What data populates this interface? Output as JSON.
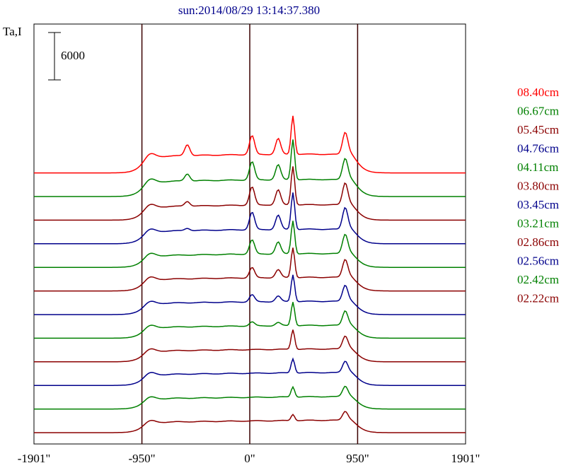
{
  "chart_data": {
    "type": "line",
    "title": "sun:2014/08/29 13:14:37.380",
    "ylabel": "Ta,I",
    "scale_bar_label": "6000",
    "xlim": [
      -1901,
      1901
    ],
    "x_ticks": [
      "-1901\"",
      "-950\"",
      "0\"",
      "950\"",
      "1901\""
    ],
    "x_tick_values": [
      -1901,
      -950,
      0,
      950,
      1901
    ],
    "vertical_markers": [
      -950,
      0,
      950
    ],
    "grid": false,
    "legend_position": "right",
    "series": [
      {
        "name": "08.40cm",
        "color": "#ff0000",
        "baseline": 760,
        "disk": 2200,
        "limb_peak": 1300,
        "center_dip": 120,
        "peaks": [
          {
            "x": -550,
            "h": 1400
          },
          {
            "x": 20,
            "h": 2400
          },
          {
            "x": 250,
            "h": 2000
          },
          {
            "x": 380,
            "h": 4900
          },
          {
            "x": 840,
            "h": 2600
          }
        ]
      },
      {
        "name": "06.67cm",
        "color": "#008000",
        "baseline": 1250,
        "disk": 2000,
        "limb_peak": 1200,
        "center_dip": 100,
        "peaks": [
          {
            "x": -550,
            "h": 900
          },
          {
            "x": 20,
            "h": 2300
          },
          {
            "x": 250,
            "h": 1900
          },
          {
            "x": 380,
            "h": 5100
          },
          {
            "x": 840,
            "h": 2500
          }
        ]
      },
      {
        "name": "05.45cm",
        "color": "#8b0000",
        "baseline": 1450,
        "disk": 1800,
        "limb_peak": 1100,
        "center_dip": 100,
        "peaks": [
          {
            "x": -550,
            "h": 600
          },
          {
            "x": 20,
            "h": 2300
          },
          {
            "x": 250,
            "h": 1900
          },
          {
            "x": 380,
            "h": 4900
          },
          {
            "x": 840,
            "h": 2600
          }
        ]
      },
      {
        "name": "04.76cm",
        "color": "#00008b",
        "baseline": 1600,
        "disk": 1700,
        "limb_peak": 1000,
        "center_dip": 80,
        "peaks": [
          {
            "x": -550,
            "h": 300
          },
          {
            "x": 20,
            "h": 2200
          },
          {
            "x": 250,
            "h": 1800
          },
          {
            "x": 380,
            "h": 4700
          },
          {
            "x": 840,
            "h": 2600
          }
        ]
      },
      {
        "name": "04.11cm",
        "color": "#008000",
        "baseline": 1700,
        "disk": 1600,
        "limb_peak": 1000,
        "center_dip": 80,
        "peaks": [
          {
            "x": 20,
            "h": 1800
          },
          {
            "x": 250,
            "h": 1500
          },
          {
            "x": 380,
            "h": 4200
          },
          {
            "x": 840,
            "h": 2300
          }
        ]
      },
      {
        "name": "03.80cm",
        "color": "#8b0000",
        "baseline": 1800,
        "disk": 1600,
        "limb_peak": 1000,
        "center_dip": 60,
        "peaks": [
          {
            "x": 20,
            "h": 1300
          },
          {
            "x": 250,
            "h": 1000
          },
          {
            "x": 380,
            "h": 3800
          },
          {
            "x": 840,
            "h": 2100
          }
        ]
      },
      {
        "name": "03.45cm",
        "color": "#00008b",
        "baseline": 1850,
        "disk": 1550,
        "limb_peak": 900,
        "center_dip": 60,
        "peaks": [
          {
            "x": 20,
            "h": 900
          },
          {
            "x": 250,
            "h": 700
          },
          {
            "x": 380,
            "h": 3400
          },
          {
            "x": 840,
            "h": 1900
          }
        ]
      },
      {
        "name": "03.21cm",
        "color": "#008000",
        "baseline": 1900,
        "disk": 1500,
        "limb_peak": 900,
        "center_dip": 50,
        "peaks": [
          {
            "x": 20,
            "h": 500
          },
          {
            "x": 250,
            "h": 400
          },
          {
            "x": 380,
            "h": 3000
          },
          {
            "x": 840,
            "h": 1700
          }
        ]
      },
      {
        "name": "02.86cm",
        "color": "#8b0000",
        "baseline": 1950,
        "disk": 1500,
        "limb_peak": 900,
        "center_dip": 40,
        "peaks": [
          {
            "x": 380,
            "h": 2500
          },
          {
            "x": 840,
            "h": 1500
          }
        ]
      },
      {
        "name": "02.56cm",
        "color": "#00008b",
        "baseline": 1950,
        "disk": 1500,
        "limb_peak": 900,
        "center_dip": 40,
        "peaks": [
          {
            "x": 380,
            "h": 1800
          },
          {
            "x": 840,
            "h": 1300
          }
        ]
      },
      {
        "name": "02.42cm",
        "color": "#008000",
        "baseline": 1950,
        "disk": 1450,
        "limb_peak": 800,
        "center_dip": 30,
        "peaks": [
          {
            "x": 380,
            "h": 1300
          },
          {
            "x": 840,
            "h": 1200
          }
        ]
      },
      {
        "name": "02.22cm",
        "color": "#8b0000",
        "baseline": 1950,
        "disk": 1450,
        "limb_peak": 800,
        "center_dip": 30,
        "peaks": [
          {
            "x": 380,
            "h": 800
          },
          {
            "x": 840,
            "h": 1000
          }
        ]
      }
    ]
  }
}
